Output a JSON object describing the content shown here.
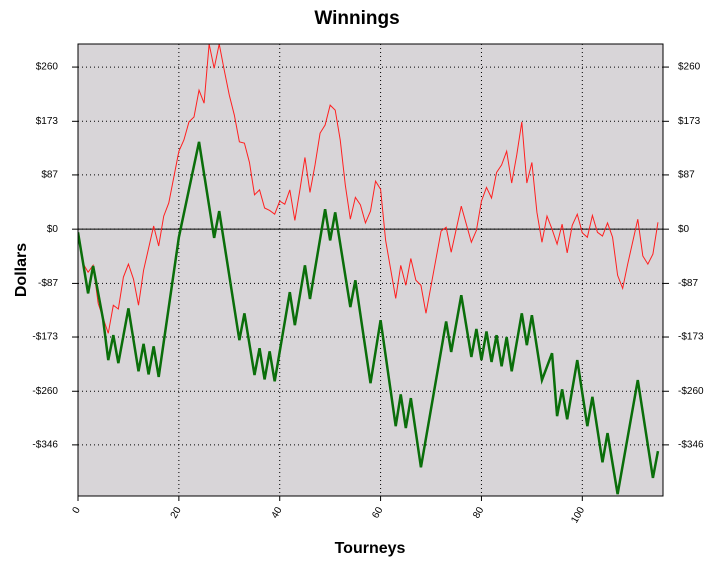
{
  "chart_data": {
    "type": "line",
    "title": "Winnings",
    "x_label": "Tourneys",
    "y_label": "Dollars",
    "xlim": [
      0,
      116
    ],
    "xticks": [
      0,
      20,
      40,
      60,
      80,
      100
    ],
    "ylim": [
      -428,
      297
    ],
    "yticks": [
      {
        "value": 260,
        "label": "$260"
      },
      {
        "value": 173,
        "label": "$173"
      },
      {
        "value": 87,
        "label": "$87"
      },
      {
        "value": 0,
        "label": "$0"
      },
      {
        "value": -87,
        "label": "-$87"
      },
      {
        "value": -173,
        "label": "-$173"
      },
      {
        "value": -260,
        "label": "-$260"
      },
      {
        "value": -346,
        "label": "-$346"
      }
    ],
    "grid": true,
    "right_axis": true,
    "background": "#d8d5d8",
    "series": [
      {
        "color": "#ff2020",
        "line_width": 1,
        "x": [
          0,
          1,
          2,
          3,
          4,
          6,
          7,
          8,
          9,
          10,
          11,
          12,
          13,
          15,
          16,
          17,
          18,
          20,
          21,
          22,
          23,
          24,
          25,
          26,
          27,
          28,
          29,
          30,
          31,
          32,
          33,
          34,
          35,
          36,
          37,
          38,
          39,
          40,
          41,
          42,
          43,
          44,
          45,
          46,
          47,
          48,
          49,
          50,
          51,
          52,
          53,
          54,
          55,
          56,
          57,
          58,
          59,
          60,
          61,
          63,
          64,
          65,
          66,
          67,
          68,
          69,
          71,
          72,
          73,
          74,
          76,
          78,
          79,
          80,
          81,
          82,
          83,
          84,
          85,
          86,
          87,
          88,
          89,
          90,
          91,
          92,
          93,
          94,
          95,
          96,
          97,
          98,
          99,
          100,
          101,
          102,
          103,
          104,
          105,
          106,
          107,
          108,
          109,
          111,
          112,
          113,
          114,
          115
        ],
        "values": [
          -5,
          -55,
          -69,
          -58,
          -119,
          -167,
          -122,
          -128,
          -77,
          -56,
          -80,
          -122,
          -66,
          5,
          -27,
          21,
          42,
          125,
          143,
          172,
          180,
          223,
          202,
          297,
          258,
          297,
          255,
          215,
          183,
          140,
          138,
          107,
          55,
          63,
          34,
          30,
          24,
          45,
          40,
          63,
          14,
          63,
          115,
          59,
          103,
          154,
          167,
          199,
          191,
          143,
          71,
          16,
          51,
          39,
          10,
          29,
          77,
          64,
          -18,
          -111,
          -58,
          -90,
          -47,
          -82,
          -90,
          -135,
          -47,
          -3,
          3,
          -37,
          37,
          -21,
          -2,
          45,
          67,
          50,
          91,
          103,
          125,
          74,
          119,
          172,
          74,
          107,
          27,
          -21,
          21,
          0,
          -24,
          8,
          -38,
          6,
          24,
          -6,
          -13,
          22,
          -5,
          -11,
          10,
          -13,
          -74,
          -95,
          -56,
          16,
          -43,
          -56,
          -40,
          11
        ]
      },
      {
        "color": "#0a6e0a",
        "line_width": 2.5,
        "x": [
          0,
          2,
          3,
          5,
          6,
          7,
          8,
          10,
          12,
          13,
          14,
          15,
          16,
          20,
          24,
          27,
          28,
          32,
          33,
          35,
          36,
          37,
          38,
          39,
          42,
          43,
          45,
          46,
          49,
          50,
          51,
          54,
          55,
          58,
          60,
          63,
          64,
          65,
          66,
          68,
          73,
          74,
          76,
          78,
          79,
          80,
          81,
          82,
          83,
          84,
          85,
          86,
          88,
          89,
          90,
          92,
          94,
          95,
          96,
          97,
          99,
          101,
          102,
          104,
          105,
          107,
          111,
          114,
          115
        ],
        "values": [
          -5,
          -103,
          -59,
          -146,
          -210,
          -170,
          -215,
          -127,
          -228,
          -184,
          -233,
          -188,
          -237,
          -13,
          140,
          -14,
          29,
          -178,
          -135,
          -234,
          -191,
          -241,
          -196,
          -244,
          -101,
          -154,
          -58,
          -112,
          32,
          -18,
          27,
          -125,
          -82,
          -247,
          -146,
          -316,
          -265,
          -319,
          -271,
          -382,
          -148,
          -197,
          -106,
          -205,
          -160,
          -210,
          -164,
          -213,
          -170,
          -220,
          -173,
          -228,
          -135,
          -186,
          -138,
          -242,
          -199,
          -300,
          -257,
          -305,
          -210,
          -316,
          -269,
          -374,
          -327,
          -425,
          -242,
          -399,
          -356
        ]
      }
    ]
  }
}
